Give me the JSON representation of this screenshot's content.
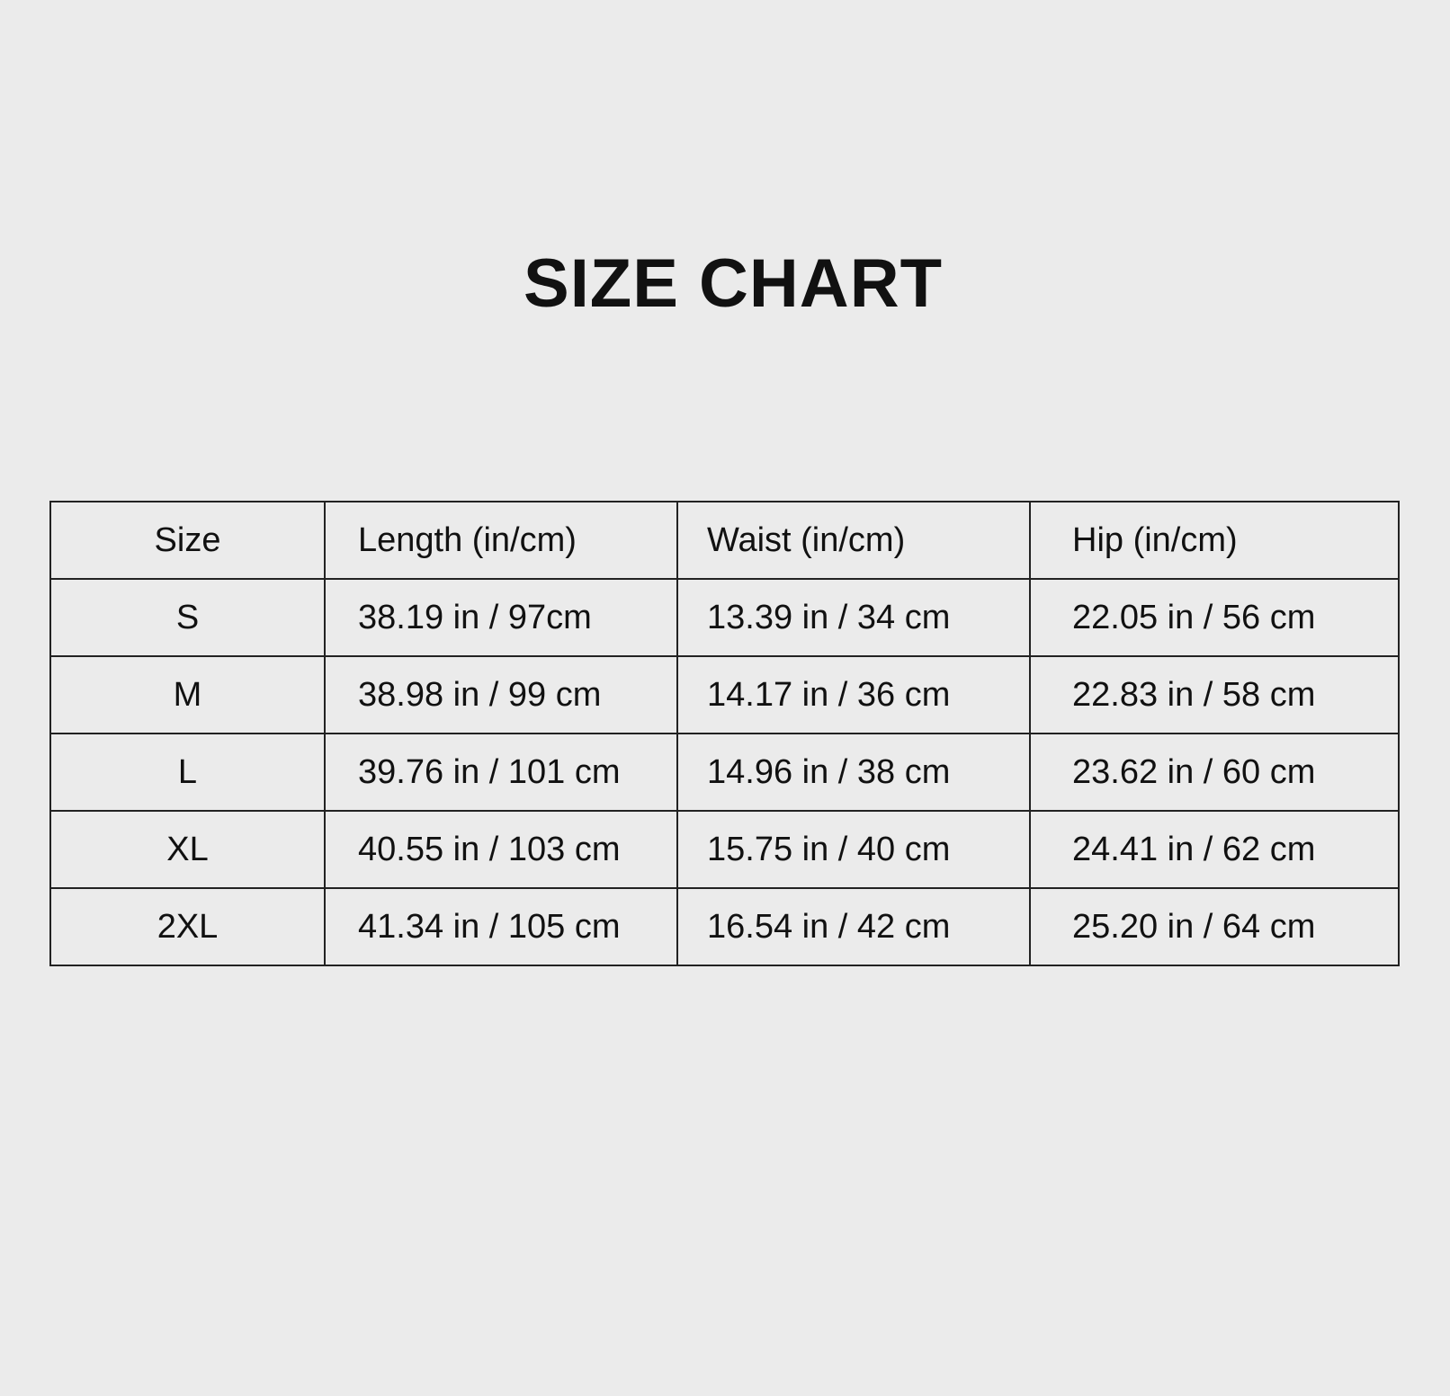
{
  "title": "SIZE CHART",
  "table": {
    "headers": [
      "Size",
      "Length (in/cm)",
      "Waist (in/cm)",
      "Hip (in/cm)"
    ],
    "rows": [
      [
        "S",
        "38.19 in / 97cm",
        "13.39 in / 34 cm",
        "22.05 in / 56 cm"
      ],
      [
        "M",
        "38.98 in / 99 cm",
        "14.17 in / 36 cm",
        "22.83 in / 58 cm"
      ],
      [
        "L",
        "39.76 in / 101 cm",
        "14.96 in / 38 cm",
        "23.62 in / 60 cm"
      ],
      [
        "XL",
        "40.55 in / 103 cm",
        "15.75 in / 40 cm",
        "24.41 in / 62 cm"
      ],
      [
        "2XL",
        "41.34 in / 105 cm",
        "16.54 in / 42 cm",
        "25.20 in / 64 cm"
      ]
    ]
  }
}
